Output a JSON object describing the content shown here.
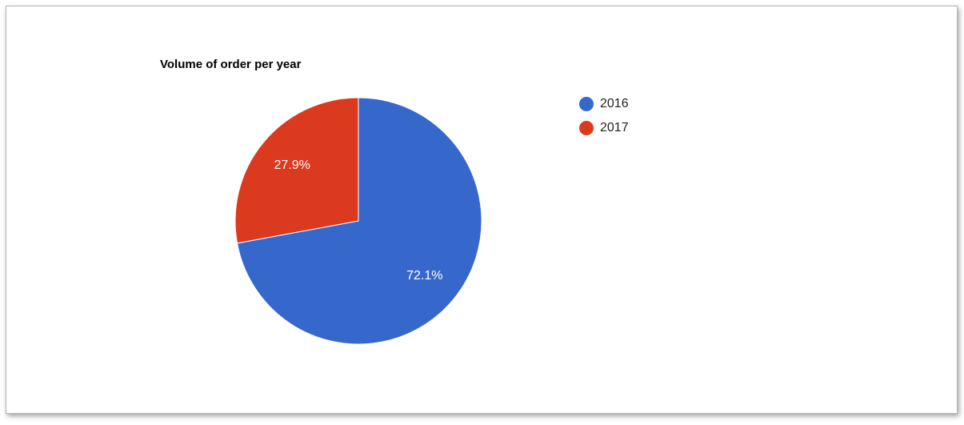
{
  "chart_data": {
    "type": "pie",
    "title": "Volume of order per year",
    "categories": [
      "2016",
      "2017"
    ],
    "values": [
      72.1,
      27.9
    ],
    "labels": [
      "72.1%",
      "27.9%"
    ],
    "colors": [
      "#3668cb",
      "#dc3a1f"
    ],
    "legend_position": "right"
  }
}
